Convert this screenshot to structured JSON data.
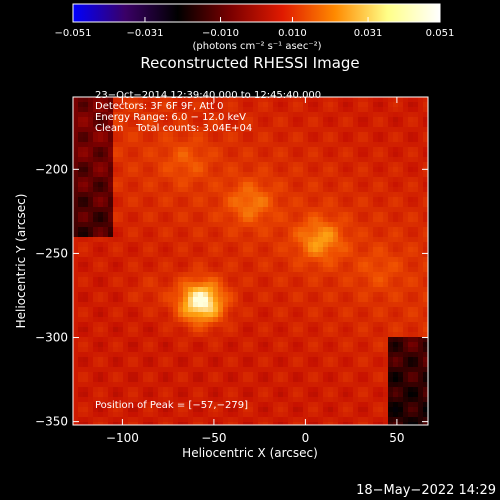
{
  "chart_data": {
    "type": "heatmap",
    "title": "Reconstructed RHESSI Image",
    "xlabel": "Heliocentric X (arcsec)",
    "ylabel": "Heliocentric Y (arcsec)",
    "xlim": [
      -127,
      67
    ],
    "ylim": [
      -352,
      -157
    ],
    "x_ticks": [
      -100,
      -50,
      0,
      50
    ],
    "x_tick_labels": [
      "−100",
      "−50",
      "0",
      "50"
    ],
    "y_ticks": [
      -200,
      -250,
      -300,
      -350
    ],
    "y_tick_labels": [
      "−200",
      "−250",
      "−300",
      "−350"
    ],
    "colorbar": {
      "range": [
        -0.051,
        0.051
      ],
      "ticks": [
        -0.051,
        -0.031,
        -0.01,
        0.01,
        0.031,
        0.051
      ],
      "tick_labels": [
        "−0.051",
        "−0.031",
        "−0.010",
        "0.010",
        "0.031",
        "0.051"
      ],
      "units": "(photons cm⁻² s⁻¹ asec⁻²)",
      "colormap": [
        "#0000ff",
        "#3a0066",
        "#000000",
        "#7a0000",
        "#e01a00",
        "#ff8a00",
        "#ffff88",
        "#ffffff"
      ]
    },
    "info_lines": [
      "23−Oct−2014 12:39:40.000 to 12:45:40.000",
      "Detectors: 3F 6F 9F, Att 0",
      "Energy Range: 6.0 − 12.0 keV",
      "Clean    Total counts: 3.04E+04"
    ],
    "peak_label": "Position of Peak = [−57,−279]",
    "peak": [
      -57,
      -279
    ],
    "sources": [
      {
        "x": -57,
        "y": -279,
        "peak": 0.051
      },
      {
        "x": 8,
        "y": -242,
        "peak": 0.03
      },
      {
        "x": -30,
        "y": -220,
        "peak": 0.025
      },
      {
        "x": -65,
        "y": -195,
        "peak": 0.02
      },
      {
        "x": 40,
        "y": -260,
        "peak": 0.018
      },
      {
        "x": -85,
        "y": -272,
        "peak": 0.016
      }
    ]
  },
  "footer": {
    "date_stamp": "18−May−2022 14:29"
  }
}
